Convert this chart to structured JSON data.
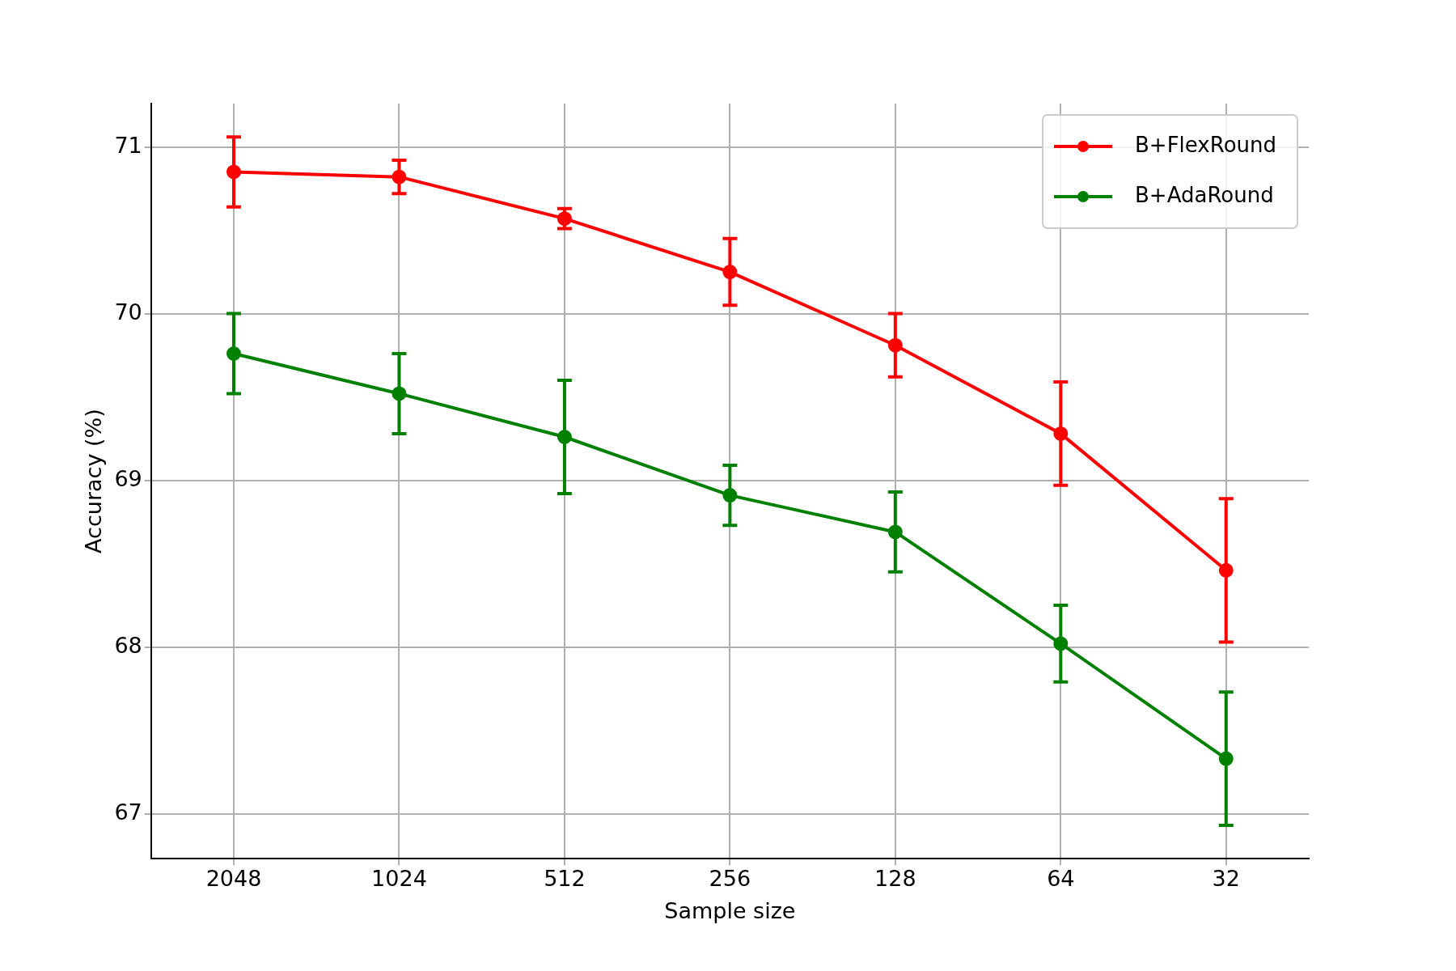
{
  "chart_data": {
    "type": "line",
    "xlabel": "Sample size",
    "ylabel": "Accuracy (%)",
    "categories": [
      "2048",
      "1024",
      "512",
      "256",
      "128",
      "64",
      "32"
    ],
    "series": [
      {
        "name": "B+FlexRound",
        "color": "#ff0000",
        "values": [
          70.85,
          70.82,
          70.57,
          70.25,
          69.81,
          69.28,
          68.46
        ],
        "errors": [
          0.21,
          0.1,
          0.06,
          0.2,
          0.19,
          0.31,
          0.43
        ]
      },
      {
        "name": "B+AdaRound",
        "color": "#008000",
        "values": [
          69.76,
          69.52,
          69.26,
          68.91,
          68.69,
          68.02,
          67.33
        ],
        "errors": [
          0.24,
          0.24,
          0.34,
          0.18,
          0.24,
          0.23,
          0.4
        ]
      }
    ],
    "ylim": [
      66.73,
      71.26
    ],
    "yticks": [
      67,
      68,
      69,
      70,
      71
    ],
    "grid": true,
    "legend": "top right",
    "marker": "circle",
    "line_style": "solid"
  }
}
